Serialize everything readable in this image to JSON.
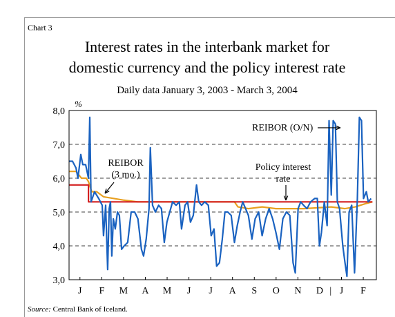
{
  "chart_data": {
    "type": "line",
    "label": "Chart 3",
    "title": [
      "Interest rates in the interbank market for",
      "domestic currency and the policy interest rate"
    ],
    "subtitle": "Daily data January 3, 2003 - March 3, 2004",
    "ylabel": "%",
    "source_label": "Source:",
    "source": "Central Bank of Iceland.",
    "annotations": [
      {
        "lines": [
          "REIBOR (O/N)"
        ]
      },
      {
        "lines": [
          "REIBOR",
          "(3 mo.)"
        ]
      },
      {
        "lines": [
          "Policy interest",
          "rate"
        ]
      }
    ],
    "year_separator": "|",
    "xlim": [
      0,
      14.1
    ],
    "xticks": [
      {
        "value": 0.5,
        "label": "J"
      },
      {
        "value": 1.5,
        "label": "F"
      },
      {
        "value": 2.5,
        "label": "M"
      },
      {
        "value": 3.5,
        "label": "A"
      },
      {
        "value": 4.5,
        "label": "M"
      },
      {
        "value": 5.5,
        "label": "J"
      },
      {
        "value": 6.5,
        "label": "J"
      },
      {
        "value": 7.5,
        "label": "A"
      },
      {
        "value": 8.5,
        "label": "S"
      },
      {
        "value": 9.5,
        "label": "O"
      },
      {
        "value": 10.5,
        "label": "N"
      },
      {
        "value": 11.5,
        "label": "D"
      },
      {
        "value": 12.5,
        "label": "J"
      },
      {
        "value": 13.5,
        "label": "F"
      }
    ],
    "ylim": [
      3,
      8
    ],
    "yticks": [
      {
        "value": 3,
        "label": "3,0"
      },
      {
        "value": 4,
        "label": "4,0"
      },
      {
        "value": 5,
        "label": "5,0"
      },
      {
        "value": 6,
        "label": "6,0"
      },
      {
        "value": 7,
        "label": "7,0"
      },
      {
        "value": 8,
        "label": "8,0"
      }
    ],
    "grid": true,
    "series": [
      {
        "color": "#e8a020",
        "x": [
          0,
          0.32,
          0.57,
          0.79,
          0.89,
          1.04,
          1.27,
          1.58,
          2.06,
          2.53,
          3.16,
          7.59,
          7.75,
          8.23,
          8.86,
          9.49,
          10.76,
          12.03,
          12.66,
          13.13,
          13.61,
          13.92
        ],
        "values": [
          6.2,
          6.2,
          6.0,
          6.0,
          5.9,
          5.6,
          5.6,
          5.45,
          5.4,
          5.35,
          5.3,
          5.3,
          5.15,
          5.1,
          5.15,
          5.1,
          5.1,
          5.15,
          5.1,
          5.15,
          5.25,
          5.3
        ]
      },
      {
        "color": "#d42020",
        "x": [
          0,
          0.89,
          0.89,
          13.92
        ],
        "values": [
          5.8,
          5.8,
          5.3,
          5.3
        ]
      },
      {
        "color": "#1a62c0",
        "x": [
          0,
          0.16,
          0.32,
          0.41,
          0.54,
          0.63,
          0.76,
          0.89,
          0.95,
          1.01,
          1.17,
          1.36,
          1.52,
          1.58,
          1.68,
          1.77,
          1.84,
          1.9,
          1.96,
          2.03,
          2.12,
          2.22,
          2.31,
          2.41,
          2.53,
          2.69,
          2.85,
          3.01,
          3.16,
          3.32,
          3.42,
          3.54,
          3.67,
          3.73,
          3.83,
          3.96,
          4.11,
          4.24,
          4.37,
          4.49,
          4.62,
          4.75,
          4.91,
          5.06,
          5.16,
          5.32,
          5.44,
          5.57,
          5.7,
          5.85,
          5.95,
          6.08,
          6.23,
          6.39,
          6.52,
          6.65,
          6.77,
          6.9,
          7.03,
          7.15,
          7.28,
          7.44,
          7.59,
          7.72,
          7.85,
          7.97,
          8.1,
          8.23,
          8.39,
          8.54,
          8.7,
          8.86,
          9.02,
          9.18,
          9.34,
          9.49,
          9.65,
          9.81,
          9.97,
          10.13,
          10.28,
          10.38,
          10.51,
          10.63,
          10.76,
          10.92,
          11.08,
          11.27,
          11.39,
          11.49,
          11.58,
          11.71,
          11.84,
          11.93,
          12.03,
          12.12,
          12.22,
          12.31,
          12.41,
          12.56,
          12.66,
          12.75,
          12.85,
          12.97,
          13.1,
          13.23,
          13.32,
          13.42,
          13.51,
          13.64,
          13.73,
          13.86
        ],
        "values": [
          6.5,
          6.5,
          6.3,
          6.0,
          6.7,
          6.4,
          6.4,
          6.0,
          7.8,
          5.3,
          5.6,
          5.4,
          5.2,
          4.3,
          5.2,
          3.3,
          5.1,
          5.3,
          3.7,
          4.8,
          4.5,
          5.0,
          4.9,
          3.9,
          4.0,
          4.1,
          5.0,
          5.0,
          4.8,
          3.9,
          3.7,
          4.2,
          5.1,
          6.9,
          5.2,
          5.0,
          5.2,
          5.1,
          4.1,
          4.7,
          5.0,
          5.3,
          5.2,
          5.3,
          4.5,
          5.2,
          5.3,
          4.7,
          4.9,
          5.8,
          5.3,
          5.2,
          5.3,
          5.2,
          4.3,
          4.5,
          3.4,
          3.5,
          4.2,
          5.0,
          5.0,
          4.9,
          4.1,
          4.6,
          5.0,
          5.3,
          5.1,
          4.9,
          4.2,
          4.8,
          5.0,
          4.3,
          4.8,
          5.1,
          4.8,
          4.4,
          3.9,
          4.8,
          5.0,
          4.9,
          3.5,
          3.2,
          5.1,
          5.3,
          5.2,
          5.1,
          5.3,
          5.4,
          5.4,
          4.0,
          4.4,
          5.3,
          4.6,
          7.7,
          5.5,
          7.7,
          7.6,
          5.3,
          5.1,
          4.0,
          3.5,
          3.1,
          5.0,
          5.2,
          3.2,
          5.4,
          7.8,
          7.7,
          5.4,
          5.6,
          5.3,
          5.4
        ]
      }
    ]
  }
}
